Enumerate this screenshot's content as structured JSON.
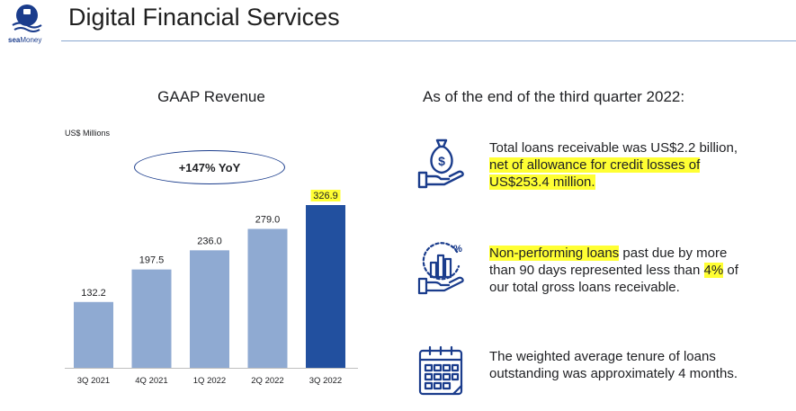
{
  "header": {
    "title": "Digital Financial Services",
    "logo_primary": "sea",
    "logo_secondary": "Money"
  },
  "chart_data": {
    "type": "bar",
    "title": "GAAP Revenue",
    "unit_label": "US$ Millions",
    "annotation": "+147% YoY",
    "categories": [
      "3Q 2021",
      "4Q 2021",
      "1Q 2022",
      "2Q 2022",
      "3Q 2022"
    ],
    "values": [
      132.2,
      197.5,
      236.0,
      279.0,
      326.9
    ],
    "value_labels": [
      "132.2",
      "197.5",
      "236.0",
      "279.0",
      "326.9"
    ],
    "highlight_index": 4,
    "ylim": [
      0,
      350
    ],
    "colors": {
      "normal": "#8faad2",
      "highlight": "#22509f",
      "label_highlight": "#ffff33"
    }
  },
  "facts": {
    "heading": "As of the end of the third quarter 2022:",
    "loans": {
      "icon": "money-bag-hand-icon",
      "text_1": "Total loans receivable was US$2.2 billion,",
      "highlight_1": "net of allowance for credit losses of",
      "highlight_2": "US$253.4 million."
    },
    "npl": {
      "icon": "growth-chart-hand-icon",
      "highlight_1": "Non-performing loans",
      "text_1": " past due by more",
      "text_2": "than 90 days represented less than ",
      "highlight_2": "4%",
      "text_3": " of",
      "text_4": "our total gross loans receivable."
    },
    "tenure": {
      "icon": "calendar-icon",
      "text_1": "The weighted average tenure of loans",
      "text_2": "outstanding was approximately 4 months."
    }
  },
  "colors": {
    "icon_blue": "#1a3c8c",
    "rule": "#8aa7cf"
  }
}
